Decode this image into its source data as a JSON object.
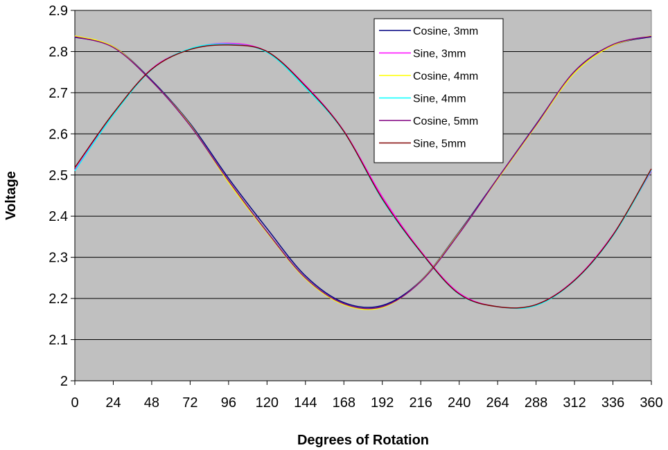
{
  "chart_data": {
    "type": "line",
    "title": "",
    "xlabel": "Degrees of Rotation",
    "ylabel": "Voltage",
    "xlim": [
      0,
      360
    ],
    "ylim": [
      2,
      2.9
    ],
    "xticks": [
      0,
      24,
      48,
      72,
      96,
      120,
      144,
      168,
      192,
      216,
      240,
      264,
      288,
      312,
      336,
      360
    ],
    "xtick_labels": [
      "0",
      "24",
      "48",
      "72",
      "96",
      "120",
      "144",
      "168",
      "192",
      "216",
      "240",
      "264",
      "288",
      "312",
      "336",
      "360"
    ],
    "yticks": [
      2,
      2.1,
      2.2,
      2.3,
      2.4,
      2.5,
      2.6,
      2.7,
      2.8,
      2.9
    ],
    "ytick_labels": [
      "2",
      "2.1",
      "2.2",
      "2.3",
      "2.4",
      "2.5",
      "2.6",
      "2.7",
      "2.8",
      "2.9"
    ],
    "grid": "horizontal",
    "plot_background": "#c0c0c0",
    "legend_position": "top-right",
    "x": [
      0,
      24,
      48,
      72,
      96,
      120,
      144,
      168,
      192,
      216,
      240,
      264,
      288,
      312,
      336,
      360
    ],
    "series": [
      {
        "name": "Cosine, 3mm",
        "color": "#000080",
        "values": [
          2.835,
          2.812,
          2.73,
          2.625,
          2.492,
          2.37,
          2.255,
          2.19,
          2.183,
          2.243,
          2.362,
          2.492,
          2.623,
          2.75,
          2.815,
          2.836
        ]
      },
      {
        "name": "Sine, 3mm",
        "color": "#ff00ff",
        "values": [
          2.512,
          2.648,
          2.758,
          2.806,
          2.82,
          2.8,
          2.718,
          2.607,
          2.447,
          2.315,
          2.213,
          2.18,
          2.185,
          2.245,
          2.355,
          2.51
        ]
      },
      {
        "name": "Cosine, 4mm",
        "color": "#ffff00",
        "values": [
          2.838,
          2.812,
          2.728,
          2.622,
          2.482,
          2.36,
          2.248,
          2.185,
          2.178,
          2.242,
          2.36,
          2.49,
          2.62,
          2.748,
          2.815,
          2.838
        ]
      },
      {
        "name": "Sine, 4mm",
        "color": "#00ffff",
        "values": [
          2.51,
          2.646,
          2.756,
          2.807,
          2.818,
          2.798,
          2.712,
          2.605,
          2.44,
          2.312,
          2.21,
          2.18,
          2.183,
          2.243,
          2.352,
          2.512
        ]
      },
      {
        "name": "Cosine, 5mm",
        "color": "#800080",
        "values": [
          2.836,
          2.81,
          2.728,
          2.62,
          2.486,
          2.362,
          2.25,
          2.187,
          2.18,
          2.241,
          2.358,
          2.492,
          2.622,
          2.752,
          2.817,
          2.837
        ]
      },
      {
        "name": "Sine, 5mm",
        "color": "#800000",
        "values": [
          2.518,
          2.65,
          2.757,
          2.805,
          2.816,
          2.8,
          2.716,
          2.606,
          2.442,
          2.313,
          2.211,
          2.18,
          2.185,
          2.244,
          2.354,
          2.515
        ]
      }
    ]
  }
}
